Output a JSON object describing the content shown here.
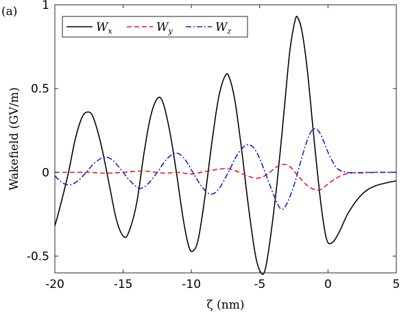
{
  "panel_label": "(a)",
  "chart_data": {
    "type": "line",
    "xlabel": "ζ (nm)",
    "ylabel": "Wakefield (GV/m)",
    "xlim": [
      -20,
      5
    ],
    "ylim": [
      -0.6,
      1.0
    ],
    "x_ticks": [
      -20,
      -15,
      -10,
      -5,
      0,
      5
    ],
    "x_tick_labels": [
      "-20",
      "-15",
      "-10",
      "-5",
      "0",
      "5"
    ],
    "y_ticks": [
      -0.5,
      0,
      0.5,
      1
    ],
    "y_tick_labels": [
      "-0.5",
      "0",
      "0.5",
      "1"
    ],
    "legend_position": "top",
    "grid": false,
    "series": [
      {
        "name": "Wx",
        "name_main": "W",
        "name_sub": "x",
        "color": "#000000",
        "dash": "solid",
        "points": [
          [
            -20.0,
            -0.32
          ],
          [
            -19.6,
            -0.2
          ],
          [
            -19.0,
            0.0
          ],
          [
            -18.5,
            0.2
          ],
          [
            -18.0,
            0.33
          ],
          [
            -17.6,
            0.36
          ],
          [
            -17.2,
            0.33
          ],
          [
            -16.6,
            0.16
          ],
          [
            -16.0,
            -0.08
          ],
          [
            -15.5,
            -0.28
          ],
          [
            -15.0,
            -0.38
          ],
          [
            -14.6,
            -0.36
          ],
          [
            -14.0,
            -0.18
          ],
          [
            -13.5,
            0.1
          ],
          [
            -13.0,
            0.33
          ],
          [
            -12.5,
            0.44
          ],
          [
            -12.1,
            0.42
          ],
          [
            -11.6,
            0.25
          ],
          [
            -11.1,
            0.0
          ],
          [
            -10.6,
            -0.28
          ],
          [
            -10.2,
            -0.44
          ],
          [
            -9.9,
            -0.47
          ],
          [
            -9.5,
            -0.4
          ],
          [
            -9.0,
            -0.14
          ],
          [
            -8.5,
            0.18
          ],
          [
            -8.0,
            0.45
          ],
          [
            -7.5,
            0.58
          ],
          [
            -7.2,
            0.56
          ],
          [
            -6.8,
            0.42
          ],
          [
            -6.3,
            0.12
          ],
          [
            -5.8,
            -0.22
          ],
          [
            -5.3,
            -0.5
          ],
          [
            -4.9,
            -0.6
          ],
          [
            -4.6,
            -0.58
          ],
          [
            -4.2,
            -0.38
          ],
          [
            -3.7,
            -0.04
          ],
          [
            -3.2,
            0.38
          ],
          [
            -2.8,
            0.72
          ],
          [
            -2.4,
            0.91
          ],
          [
            -2.2,
            0.92
          ],
          [
            -1.9,
            0.84
          ],
          [
            -1.5,
            0.6
          ],
          [
            -1.0,
            0.18
          ],
          [
            -0.5,
            -0.2
          ],
          [
            -0.1,
            -0.4
          ],
          [
            0.3,
            -0.42
          ],
          [
            0.8,
            -0.36
          ],
          [
            1.5,
            -0.24
          ],
          [
            2.5,
            -0.13
          ],
          [
            3.5,
            -0.08
          ],
          [
            5.0,
            -0.05
          ]
        ]
      },
      {
        "name": "Wy",
        "name_main": "W",
        "name_sub": "y",
        "color": "#e8141c",
        "dash": "dashed",
        "points": [
          [
            -20.0,
            0.0
          ],
          [
            -19.0,
            0.0
          ],
          [
            -17.5,
            0.0
          ],
          [
            -16.2,
            -0.005
          ],
          [
            -15.0,
            0.0
          ],
          [
            -13.5,
            0.008
          ],
          [
            -12.0,
            -0.005
          ],
          [
            -11.0,
            0.0
          ],
          [
            -10.0,
            -0.01
          ],
          [
            -9.0,
            0.005
          ],
          [
            -7.6,
            0.022
          ],
          [
            -6.8,
            0.01
          ],
          [
            -6.0,
            -0.018
          ],
          [
            -5.2,
            -0.035
          ],
          [
            -4.5,
            -0.015
          ],
          [
            -3.8,
            0.03
          ],
          [
            -3.3,
            0.048
          ],
          [
            -2.8,
            0.035
          ],
          [
            -2.2,
            -0.02
          ],
          [
            -1.5,
            -0.08
          ],
          [
            -0.9,
            -0.105
          ],
          [
            -0.5,
            -0.1
          ],
          [
            0.0,
            -0.07
          ],
          [
            0.6,
            -0.035
          ],
          [
            1.2,
            -0.012
          ],
          [
            2.0,
            -0.002
          ],
          [
            3.5,
            0.0
          ],
          [
            5.0,
            0.0
          ]
        ]
      },
      {
        "name": "Wz",
        "name_main": "W",
        "name_sub": "z",
        "color": "#1a1ad8",
        "dash": "dashdot",
        "points": [
          [
            -20.0,
            -0.02
          ],
          [
            -19.5,
            -0.06
          ],
          [
            -18.9,
            -0.075
          ],
          [
            -18.3,
            -0.05
          ],
          [
            -17.7,
            0.0
          ],
          [
            -17.1,
            0.055
          ],
          [
            -16.4,
            0.09
          ],
          [
            -15.8,
            0.075
          ],
          [
            -15.2,
            0.02
          ],
          [
            -14.5,
            -0.05
          ],
          [
            -13.8,
            -0.095
          ],
          [
            -13.2,
            -0.07
          ],
          [
            -12.5,
            0.0
          ],
          [
            -11.8,
            0.08
          ],
          [
            -11.1,
            0.115
          ],
          [
            -10.5,
            0.08
          ],
          [
            -9.9,
            0.0
          ],
          [
            -9.2,
            -0.09
          ],
          [
            -8.6,
            -0.13
          ],
          [
            -8.0,
            -0.1
          ],
          [
            -7.3,
            0.0
          ],
          [
            -6.6,
            0.11
          ],
          [
            -5.9,
            0.165
          ],
          [
            -5.3,
            0.13
          ],
          [
            -4.7,
            0.02
          ],
          [
            -4.0,
            -0.13
          ],
          [
            -3.5,
            -0.215
          ],
          [
            -3.1,
            -0.2
          ],
          [
            -2.5,
            -0.08
          ],
          [
            -1.8,
            0.12
          ],
          [
            -1.3,
            0.235
          ],
          [
            -0.9,
            0.26
          ],
          [
            -0.5,
            0.22
          ],
          [
            0.0,
            0.12
          ],
          [
            0.6,
            0.03
          ],
          [
            1.2,
            0.003
          ],
          [
            2.0,
            -0.003
          ],
          [
            3.5,
            0.0
          ],
          [
            5.0,
            0.0
          ]
        ]
      }
    ]
  }
}
